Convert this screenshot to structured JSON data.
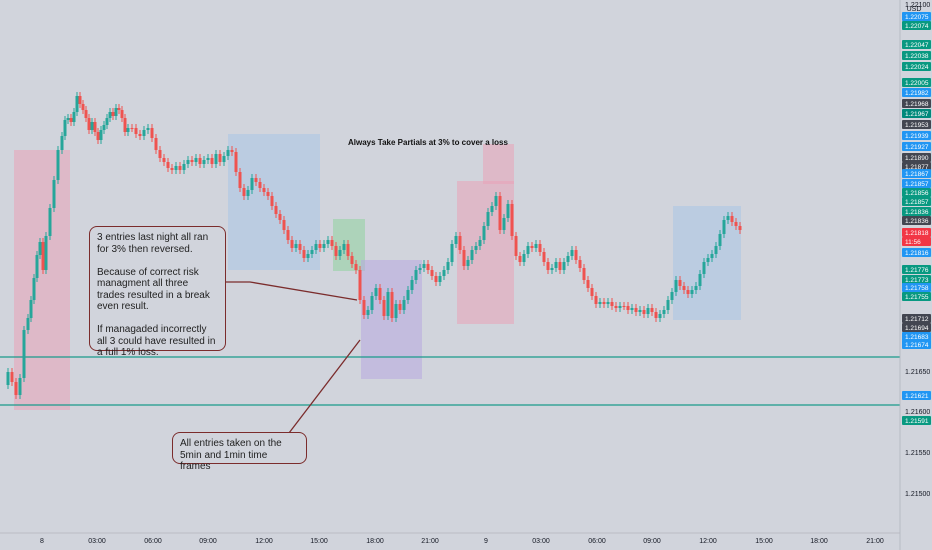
{
  "currency": "USD",
  "title_note": "Always Take Partials at 3% to cover a loss",
  "callouts": {
    "entries_note": "3 entries last night all ran for 3% then reversed.\n\nBecause of correct risk managment all three trades resulted in a break even result.\n\nIf managaded incorrectly all 3 could have resulted in a full 1% loss.",
    "timeframes_note": "All entries taken on the 5min and  1min time frames"
  },
  "time_axis": [
    "8",
    "03:00",
    "06:00",
    "09:00",
    "12:00",
    "15:00",
    "18:00",
    "21:00",
    "9",
    "03:00",
    "06:00",
    "09:00",
    "12:00",
    "15:00",
    "18:00",
    "21:00"
  ],
  "price_axis": {
    "plain": [
      "1.22100",
      "1.21650",
      "1.21600",
      "1.21550",
      "1.21500"
    ],
    "tags": [
      {
        "label": "1.22075",
        "kind": "blue"
      },
      {
        "label": "1.22074",
        "kind": "green"
      },
      {
        "label": "1.22047",
        "kind": "green"
      },
      {
        "label": "1.22038",
        "kind": "green"
      },
      {
        "label": "1.22024",
        "kind": "green"
      },
      {
        "label": "1.22005",
        "kind": "green"
      },
      {
        "label": "1.21982",
        "kind": "blue"
      },
      {
        "label": "1.21968",
        "kind": "dark"
      },
      {
        "label": "1.21967",
        "kind": "teal"
      },
      {
        "label": "1.21953",
        "kind": "dark"
      },
      {
        "label": "1.21939",
        "kind": "blue"
      },
      {
        "label": "1.21927",
        "kind": "blue"
      },
      {
        "label": "1.21890",
        "kind": "dark"
      },
      {
        "label": "1.21877",
        "kind": "dark"
      },
      {
        "label": "1.21867",
        "kind": "blue"
      },
      {
        "label": "1.21857",
        "kind": "blue"
      },
      {
        "label": "1.21856",
        "kind": "green"
      },
      {
        "label": "1.21857",
        "kind": "green"
      },
      {
        "label": "1.21836",
        "kind": "green"
      },
      {
        "label": "1.21836",
        "kind": "dark"
      },
      {
        "label": "1.21818",
        "kind": "red"
      },
      {
        "label": "11:56",
        "kind": "red"
      },
      {
        "label": "1.21816",
        "kind": "blue"
      },
      {
        "label": "1.21776",
        "kind": "green"
      },
      {
        "label": "1.21773",
        "kind": "green"
      },
      {
        "label": "1.21758",
        "kind": "blue"
      },
      {
        "label": "1.21755",
        "kind": "green"
      },
      {
        "label": "1.21712",
        "kind": "dark"
      },
      {
        "label": "1.21694",
        "kind": "dark"
      },
      {
        "label": "1.21683",
        "kind": "blue"
      },
      {
        "label": "1.21674",
        "kind": "blue"
      },
      {
        "label": "1.21621",
        "kind": "blue"
      },
      {
        "label": "1.21591",
        "kind": "green"
      }
    ]
  },
  "colors": {
    "background": "#d1d4dc",
    "up_candle": "#26a69a",
    "down_candle": "#ef5350",
    "horizontal_line": "#1a9a8a",
    "callout_border": "#7b2c2c",
    "pink_zone": "#e9a2b8",
    "blue_zone": "#a9c4e6",
    "green_zone": "#8fd19e",
    "purple_zone": "#b8a7e0"
  },
  "chart_data": {
    "type": "candlestick",
    "title": "",
    "ylabel": "",
    "xlabel": "",
    "ylim": [
      1.2145,
      1.221
    ],
    "horizontal_levels": [
      1.21674,
      1.21621
    ],
    "last_price": 1.21818
  }
}
